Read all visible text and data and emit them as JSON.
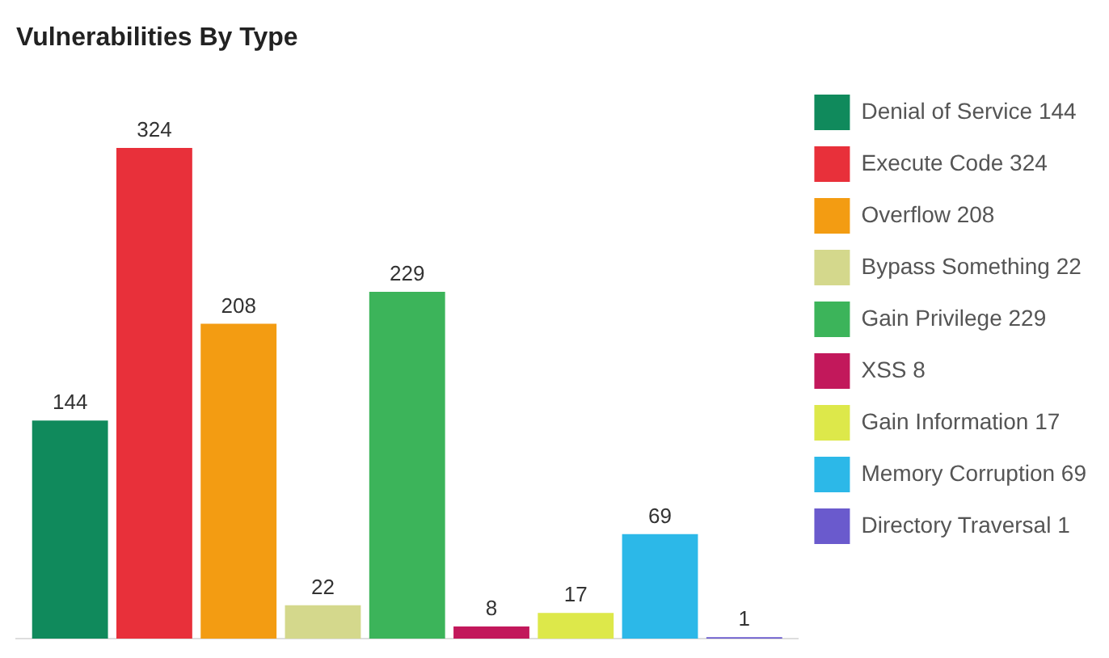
{
  "chart_data": {
    "type": "bar",
    "title": "Vulnerabilities By Type",
    "categories": [
      null
    ],
    "series": [
      {
        "name": "Denial of Service 144",
        "color": "#108a5c",
        "values": [
          144
        ]
      },
      {
        "name": "Execute Code 324",
        "color": "#e8303a",
        "values": [
          324
        ]
      },
      {
        "name": "Overflow 208",
        "color": "#f39c12",
        "values": [
          208
        ]
      },
      {
        "name": "Bypass Something 22",
        "color": "#d4d88c",
        "values": [
          22
        ]
      },
      {
        "name": "Gain Privilege 229",
        "color": "#3cb45a",
        "values": [
          229
        ]
      },
      {
        "name": "XSS 8",
        "color": "#c2185b",
        "values": [
          8
        ]
      },
      {
        "name": "Gain Information 17",
        "color": "#dde84a",
        "values": [
          17
        ]
      },
      {
        "name": "Memory Corruption 69",
        "color": "#2cb8e8",
        "values": [
          69
        ]
      },
      {
        "name": "Directory Traversal 1",
        "color": "#6a5acd",
        "values": [
          1
        ]
      }
    ],
    "grid": false,
    "legend": "right",
    "data_labels": true
  }
}
